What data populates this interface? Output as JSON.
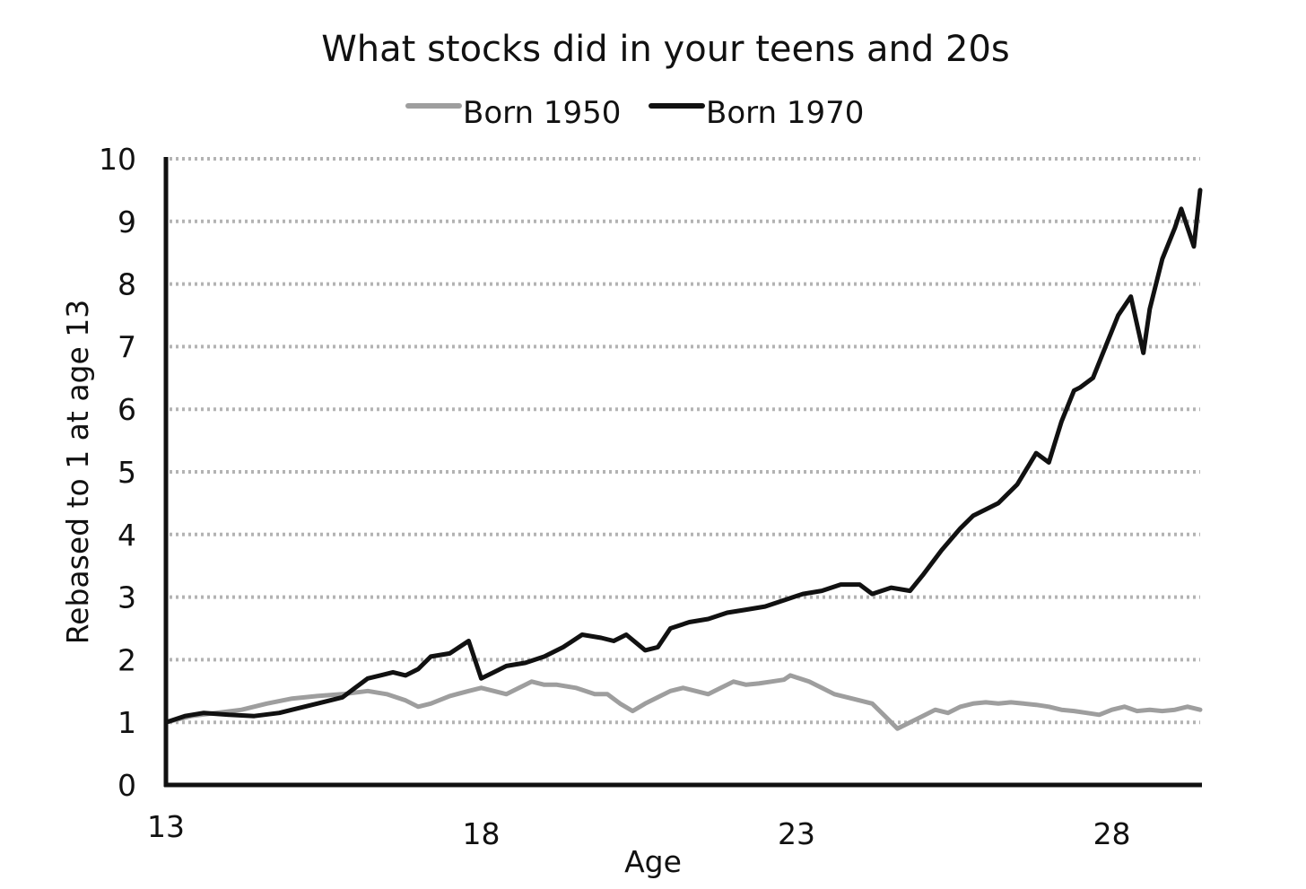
{
  "chart_data": {
    "type": "line",
    "title": "What stocks did in your teens and 20s",
    "xlabel": "Age",
    "ylabel": "Rebased to 1 at age 13",
    "xlim": [
      13,
      29.4
    ],
    "ylim": [
      0,
      10
    ],
    "x_ticks": [
      13,
      18,
      23,
      28
    ],
    "y_ticks": [
      0,
      1,
      2,
      3,
      4,
      5,
      6,
      7,
      8,
      9,
      10
    ],
    "grid": "horizontal dotted",
    "legend": "top-center",
    "series": [
      {
        "name": "Born 1950",
        "color": "#9e9e9e",
        "x": [
          13.0,
          13.4,
          13.8,
          14.2,
          14.6,
          15.0,
          15.4,
          15.8,
          16.2,
          16.5,
          16.8,
          17.0,
          17.2,
          17.5,
          17.8,
          18.0,
          18.2,
          18.4,
          18.6,
          18.8,
          19.0,
          19.2,
          19.5,
          19.8,
          20.0,
          20.2,
          20.4,
          20.6,
          20.8,
          21.0,
          21.2,
          21.4,
          21.6,
          21.8,
          22.0,
          22.2,
          22.4,
          22.6,
          22.8,
          22.9,
          23.2,
          23.4,
          23.6,
          23.8,
          24.0,
          24.2,
          24.4,
          24.6,
          24.8,
          25.0,
          25.2,
          25.4,
          25.6,
          25.8,
          26.0,
          26.2,
          26.4,
          26.6,
          26.8,
          27.0,
          27.2,
          27.4,
          27.6,
          27.8,
          28.0,
          28.2,
          28.4,
          28.6,
          28.8,
          29.0,
          29.2,
          29.4
        ],
        "values": [
          1.0,
          1.1,
          1.15,
          1.2,
          1.3,
          1.38,
          1.42,
          1.45,
          1.5,
          1.45,
          1.35,
          1.25,
          1.3,
          1.42,
          1.5,
          1.55,
          1.5,
          1.45,
          1.55,
          1.65,
          1.6,
          1.6,
          1.55,
          1.45,
          1.45,
          1.3,
          1.18,
          1.3,
          1.4,
          1.5,
          1.55,
          1.5,
          1.45,
          1.55,
          1.65,
          1.6,
          1.62,
          1.65,
          1.68,
          1.75,
          1.65,
          1.55,
          1.45,
          1.4,
          1.35,
          1.3,
          1.1,
          0.9,
          1.0,
          1.1,
          1.2,
          1.15,
          1.25,
          1.3,
          1.32,
          1.3,
          1.32,
          1.3,
          1.28,
          1.25,
          1.2,
          1.18,
          1.15,
          1.12,
          1.2,
          1.25,
          1.18,
          1.2,
          1.18,
          1.2,
          1.25,
          1.2
        ]
      },
      {
        "name": "Born 1970",
        "color": "#111111",
        "x": [
          13.0,
          13.3,
          13.6,
          14.0,
          14.4,
          14.8,
          15.0,
          15.4,
          15.8,
          16.0,
          16.2,
          16.4,
          16.6,
          16.8,
          17.0,
          17.2,
          17.5,
          17.8,
          18.0,
          18.2,
          18.4,
          18.7,
          19.0,
          19.3,
          19.6,
          19.9,
          20.1,
          20.3,
          20.6,
          20.8,
          21.0,
          21.3,
          21.6,
          21.9,
          22.2,
          22.5,
          22.8,
          23.1,
          23.4,
          23.7,
          24.0,
          24.2,
          24.5,
          24.8,
          25.0,
          25.3,
          25.6,
          25.8,
          26.0,
          26.2,
          26.5,
          26.8,
          27.0,
          27.2,
          27.4,
          27.5,
          27.7,
          27.9,
          28.1,
          28.3,
          28.5,
          28.6,
          28.8,
          29.0,
          29.1,
          29.3,
          29.4
        ],
        "values": [
          1.0,
          1.1,
          1.15,
          1.12,
          1.1,
          1.15,
          1.2,
          1.3,
          1.4,
          1.55,
          1.7,
          1.75,
          1.8,
          1.75,
          1.85,
          2.05,
          2.1,
          2.3,
          1.7,
          1.8,
          1.9,
          1.95,
          2.05,
          2.2,
          2.4,
          2.35,
          2.3,
          2.4,
          2.15,
          2.2,
          2.5,
          2.6,
          2.65,
          2.75,
          2.8,
          2.85,
          2.95,
          3.05,
          3.1,
          3.2,
          3.2,
          3.05,
          3.15,
          3.1,
          3.35,
          3.75,
          4.1,
          4.3,
          4.4,
          4.5,
          4.8,
          5.3,
          5.15,
          5.8,
          6.3,
          6.35,
          6.5,
          7.0,
          7.5,
          7.8,
          6.9,
          7.6,
          8.4,
          8.9,
          9.2,
          8.6,
          9.5
        ]
      }
    ]
  }
}
